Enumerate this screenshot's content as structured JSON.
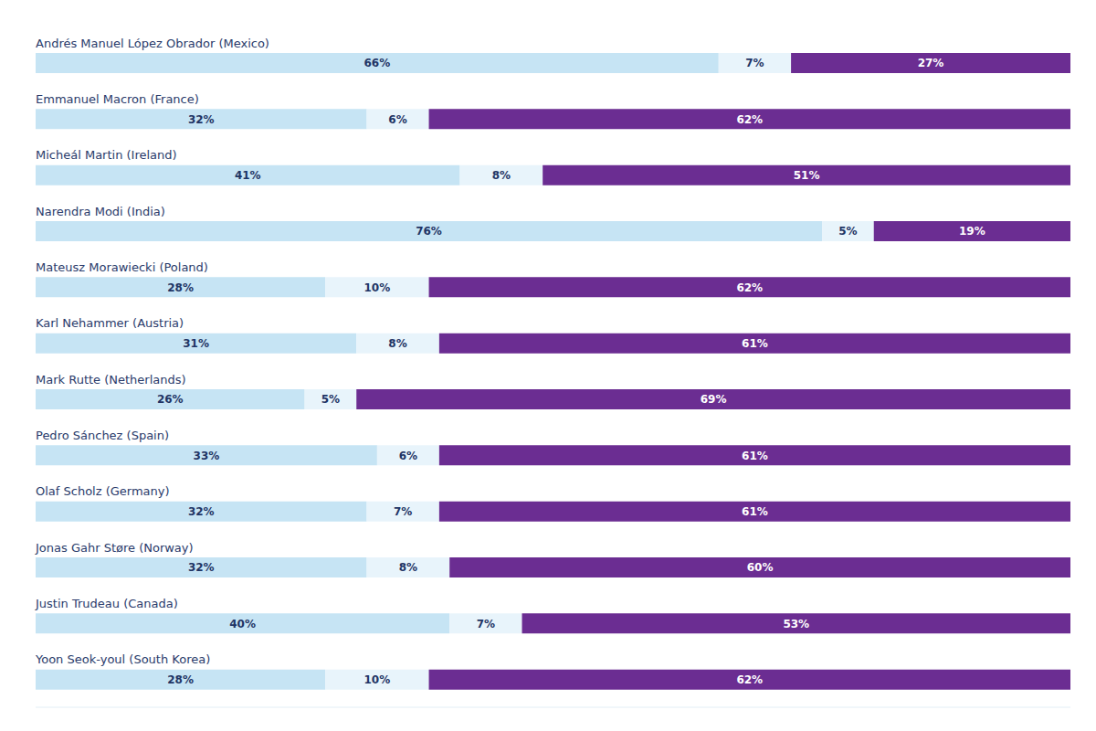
{
  "chart_data": {
    "type": "bar",
    "orientation": "horizontal",
    "stacked": true,
    "data_labels": true,
    "tick_labels": "y",
    "grid": false,
    "xlim": [
      0,
      100
    ],
    "categories": [
      "Andrés Manuel López Obrador (Mexico)",
      "Emmanuel Macron (France)",
      "Micheál Martin (Ireland)",
      "Narendra Modi (India)",
      "Mateusz Morawiecki (Poland)",
      "Karl Nehammer (Austria)",
      "Mark Rutte (Netherlands)",
      "Pedro Sánchez (Spain)",
      "Olaf Scholz (Germany)",
      "Jonas Gahr Støre (Norway)",
      "Justin Trudeau (Canada)",
      "Yoon Seok-youl (South Korea)"
    ],
    "series": [
      {
        "color": "#c6e4f4",
        "values": [
          66,
          32,
          41,
          76,
          28,
          31,
          26,
          33,
          32,
          32,
          40,
          28
        ],
        "value_labels": [
          "66%",
          "32%",
          "41%",
          "76%",
          "28%",
          "31%",
          "26%",
          "33%",
          "32%",
          "32%",
          "40%",
          "28%"
        ]
      },
      {
        "color": "#e8f4fb",
        "values": [
          7,
          6,
          8,
          5,
          10,
          8,
          5,
          6,
          7,
          8,
          7,
          10
        ],
        "value_labels": [
          "7%",
          "6%",
          "8%",
          "5%",
          "10%",
          "8%",
          "5%",
          "6%",
          "7%",
          "8%",
          "7%",
          "10%"
        ]
      },
      {
        "color": "#6b2d92",
        "values": [
          27,
          62,
          51,
          19,
          62,
          61,
          69,
          61,
          61,
          60,
          53,
          62
        ],
        "value_labels": [
          "27%",
          "62%",
          "51%",
          "19%",
          "62%",
          "61%",
          "69%",
          "61%",
          "61%",
          "60%",
          "53%",
          "62%"
        ]
      }
    ]
  }
}
